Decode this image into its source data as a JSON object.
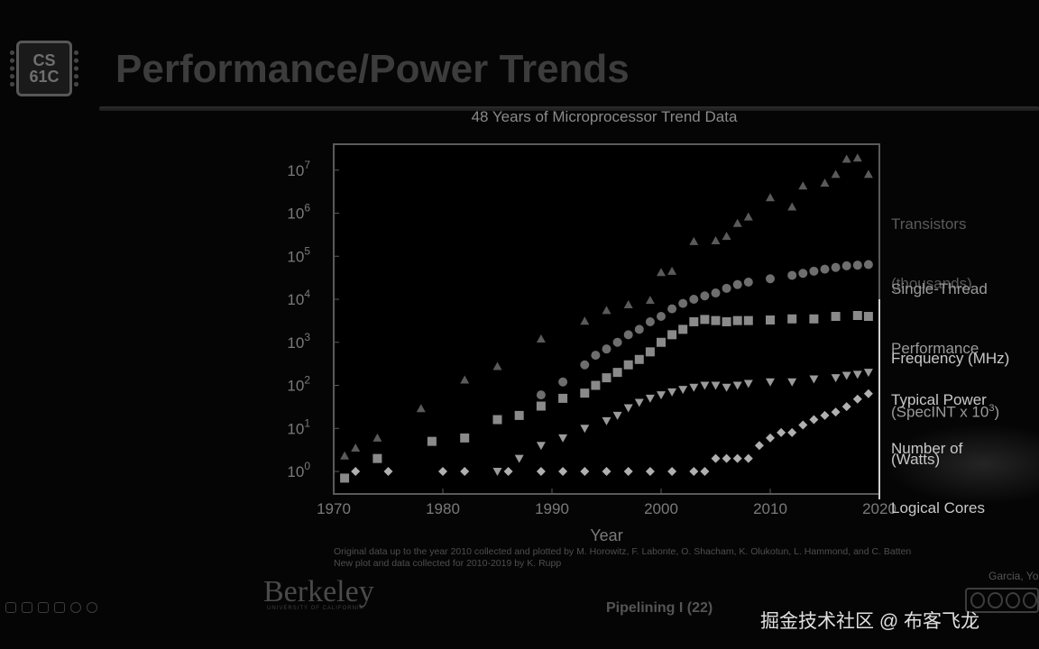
{
  "slide": {
    "title": "Performance/Power Trends",
    "logo_line1": "CS",
    "logo_line2": "61C",
    "footer_center": "Pipelining I (22)",
    "berkeley": "Berkeley",
    "berkeley_sub": "UNIVERSITY OF CALIFORNIA",
    "author": "Garcia, Yo",
    "watermark": "掘金技术社区 @ 布客飞龙",
    "credit_line1": "Original data up to the year 2010 collected and plotted by M. Horowitz, F. Labonte, O. Shacham, K. Olukotun, L. Hammond, and C. Batten",
    "credit_line2": "New plot and data collected for 2010-2019 by K. Rupp",
    "icons": [
      "first-slide-icon",
      "pen-icon",
      "slides-icon",
      "zoom-icon",
      "back-icon",
      "forward-icon",
      "creative-commons-icon"
    ]
  },
  "chart_data": {
    "type": "scatter",
    "title": "48 Years of Microprocessor Trend Data",
    "xlabel": "Year",
    "ylabel": "",
    "xlim": [
      1970,
      2020
    ],
    "ylim": [
      0.3,
      40000000
    ],
    "yscale": "log",
    "x_ticks": [
      "1970",
      "1980",
      "1990",
      "2000",
      "2010",
      "2020"
    ],
    "y_ticks": [
      {
        "value": 1,
        "base": "10",
        "exp": "0"
      },
      {
        "value": 10,
        "base": "10",
        "exp": "1"
      },
      {
        "value": 100,
        "base": "10",
        "exp": "2"
      },
      {
        "value": 1000,
        "base": "10",
        "exp": "3"
      },
      {
        "value": 10000,
        "base": "10",
        "exp": "4"
      },
      {
        "value": 100000,
        "base": "10",
        "exp": "5"
      },
      {
        "value": 1000000,
        "base": "10",
        "exp": "6"
      },
      {
        "value": 10000000,
        "base": "10",
        "exp": "7"
      }
    ],
    "legend_position": "right",
    "series": [
      {
        "name": "Transistors (thousands)",
        "label_lines": [
          "Transistors",
          "(thousands)"
        ],
        "marker": "triangle-up",
        "color": "#5a5a5a",
        "points": [
          [
            1971,
            2.3
          ],
          [
            1972,
            3.5
          ],
          [
            1974,
            6
          ],
          [
            1978,
            29
          ],
          [
            1982,
            134
          ],
          [
            1985,
            275
          ],
          [
            1989,
            1200
          ],
          [
            1993,
            3100
          ],
          [
            1995,
            5500
          ],
          [
            1997,
            7500
          ],
          [
            1999,
            9500
          ],
          [
            2000,
            42000
          ],
          [
            2001,
            45000
          ],
          [
            2003,
            220000
          ],
          [
            2005,
            230000
          ],
          [
            2006,
            290000
          ],
          [
            2007,
            580000
          ],
          [
            2008,
            820000
          ],
          [
            2010,
            2300000
          ],
          [
            2012,
            1400000
          ],
          [
            2013,
            4300000
          ],
          [
            2015,
            5000000
          ],
          [
            2016,
            8000000
          ],
          [
            2017,
            18000000
          ],
          [
            2018,
            19200000
          ],
          [
            2019,
            8000000
          ]
        ]
      },
      {
        "name": "Single-Thread Performance (SpecINT x 10^3)",
        "label_lines": [
          "Single-Thread",
          "Performance",
          "(SpecINT x 10",
          "3",
          ")"
        ],
        "marker": "circle",
        "color": "#6e6e6e",
        "points": [
          [
            1989,
            60
          ],
          [
            1991,
            120
          ],
          [
            1993,
            300
          ],
          [
            1994,
            500
          ],
          [
            1995,
            700
          ],
          [
            1996,
            1000
          ],
          [
            1997,
            1500
          ],
          [
            1998,
            2000
          ],
          [
            1999,
            3000
          ],
          [
            2000,
            4000
          ],
          [
            2001,
            6000
          ],
          [
            2002,
            8000
          ],
          [
            2003,
            10000
          ],
          [
            2004,
            12000
          ],
          [
            2005,
            14000
          ],
          [
            2006,
            18000
          ],
          [
            2007,
            22000
          ],
          [
            2008,
            25000
          ],
          [
            2010,
            30000
          ],
          [
            2012,
            36000
          ],
          [
            2013,
            40000
          ],
          [
            2014,
            45000
          ],
          [
            2015,
            50000
          ],
          [
            2016,
            55000
          ],
          [
            2017,
            60000
          ],
          [
            2018,
            62000
          ],
          [
            2019,
            64000
          ]
        ]
      },
      {
        "name": "Frequency (MHz)",
        "label_lines": [
          "Frequency (MHz)"
        ],
        "marker": "square",
        "color": "#8a8a8a",
        "points": [
          [
            1971,
            0.7
          ],
          [
            1974,
            2
          ],
          [
            1979,
            5
          ],
          [
            1982,
            6
          ],
          [
            1985,
            16
          ],
          [
            1987,
            20
          ],
          [
            1989,
            33
          ],
          [
            1991,
            50
          ],
          [
            1993,
            66
          ],
          [
            1994,
            100
          ],
          [
            1995,
            150
          ],
          [
            1996,
            200
          ],
          [
            1997,
            300
          ],
          [
            1998,
            400
          ],
          [
            1999,
            600
          ],
          [
            2000,
            1000
          ],
          [
            2001,
            1500
          ],
          [
            2002,
            2000
          ],
          [
            2003,
            3000
          ],
          [
            2004,
            3400
          ],
          [
            2005,
            3200
          ],
          [
            2006,
            3000
          ],
          [
            2007,
            3200
          ],
          [
            2008,
            3200
          ],
          [
            2010,
            3300
          ],
          [
            2012,
            3500
          ],
          [
            2014,
            3500
          ],
          [
            2016,
            4000
          ],
          [
            2018,
            4200
          ],
          [
            2019,
            4000
          ]
        ]
      },
      {
        "name": "Typical Power (Watts)",
        "label_lines": [
          "Typical Power",
          "(Watts)"
        ],
        "marker": "triangle-down",
        "color": "#9a9a9a",
        "points": [
          [
            1985,
            1
          ],
          [
            1987,
            2
          ],
          [
            1989,
            4
          ],
          [
            1991,
            6
          ],
          [
            1993,
            10
          ],
          [
            1995,
            15
          ],
          [
            1996,
            20
          ],
          [
            1997,
            30
          ],
          [
            1998,
            40
          ],
          [
            1999,
            50
          ],
          [
            2000,
            60
          ],
          [
            2001,
            70
          ],
          [
            2002,
            80
          ],
          [
            2003,
            90
          ],
          [
            2004,
            100
          ],
          [
            2005,
            100
          ],
          [
            2006,
            90
          ],
          [
            2007,
            100
          ],
          [
            2008,
            110
          ],
          [
            2010,
            120
          ],
          [
            2012,
            120
          ],
          [
            2014,
            140
          ],
          [
            2016,
            150
          ],
          [
            2017,
            170
          ],
          [
            2018,
            180
          ],
          [
            2019,
            200
          ]
        ]
      },
      {
        "name": "Number of Logical Cores",
        "label_lines": [
          "Number of",
          "Logical Cores"
        ],
        "marker": "diamond",
        "color": "#b0b0b0",
        "points": [
          [
            1972,
            1
          ],
          [
            1975,
            1
          ],
          [
            1980,
            1
          ],
          [
            1982,
            1
          ],
          [
            1986,
            1
          ],
          [
            1989,
            1
          ],
          [
            1991,
            1
          ],
          [
            1993,
            1
          ],
          [
            1995,
            1
          ],
          [
            1997,
            1
          ],
          [
            1999,
            1
          ],
          [
            2001,
            1
          ],
          [
            2003,
            1
          ],
          [
            2004,
            1
          ],
          [
            2005,
            2
          ],
          [
            2006,
            2
          ],
          [
            2007,
            2
          ],
          [
            2008,
            2
          ],
          [
            2009,
            4
          ],
          [
            2010,
            6
          ],
          [
            2011,
            8
          ],
          [
            2012,
            8
          ],
          [
            2013,
            12
          ],
          [
            2014,
            16
          ],
          [
            2015,
            20
          ],
          [
            2016,
            24
          ],
          [
            2017,
            32
          ],
          [
            2018,
            48
          ],
          [
            2019,
            64
          ]
        ]
      }
    ]
  }
}
